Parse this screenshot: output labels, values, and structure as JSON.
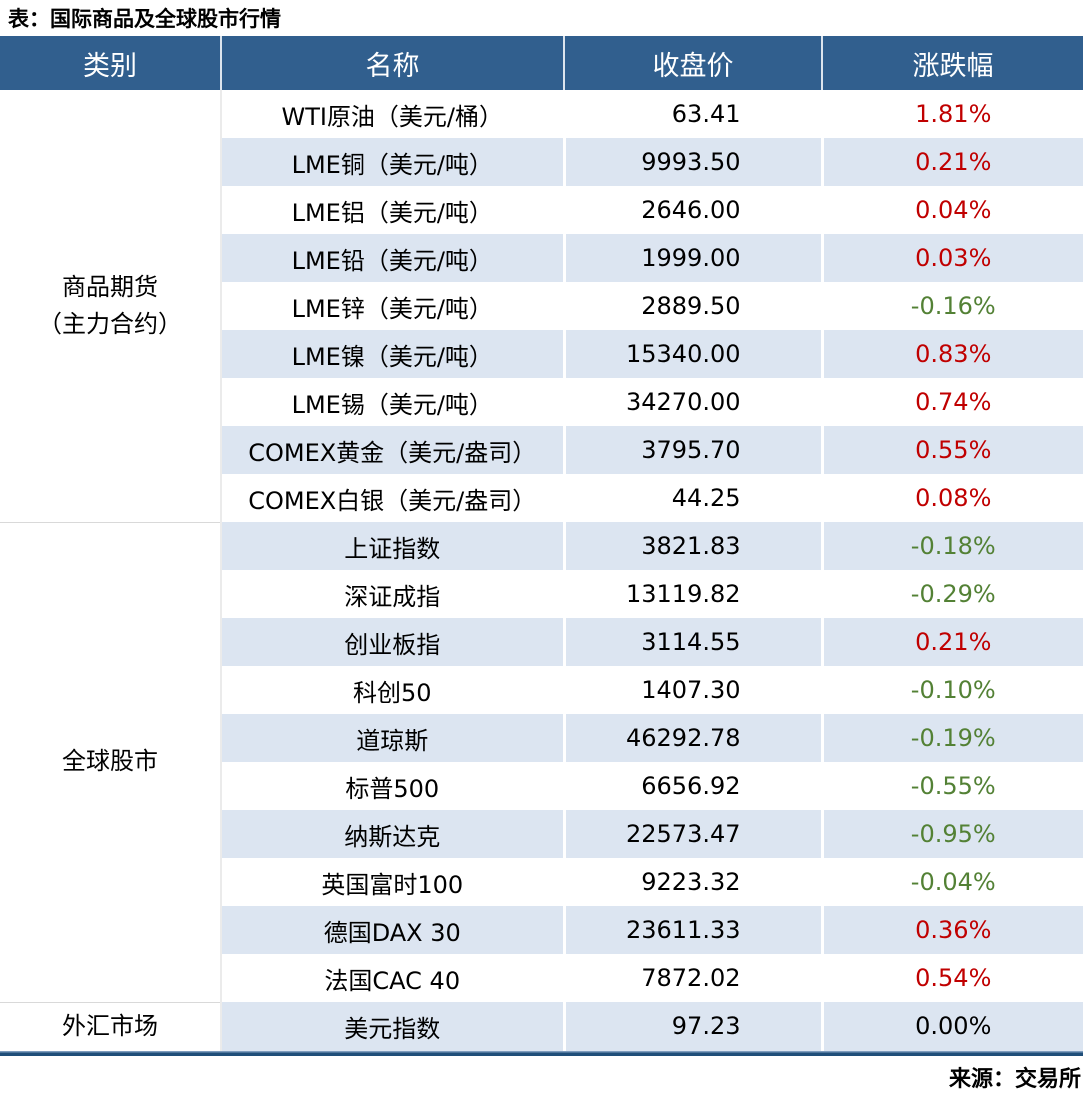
{
  "page": {
    "title": "表：国际商品及全球股市行情",
    "source": "来源：交易所"
  },
  "colors": {
    "header_bg": "#315F8E",
    "row_stripe": "#DCE5F1",
    "up_red": "#C00000",
    "down_green": "#538135",
    "flat_black": "#000000",
    "bottom_rule_blue": "#1F4E79"
  },
  "table": {
    "columns": [
      "类别",
      "名称",
      "收盘价",
      "涨跌幅"
    ],
    "sections": [
      {
        "category_lines": [
          "商品期货",
          "（主力合约）"
        ],
        "rows": [
          {
            "name": "WTI原油（美元/桶）",
            "close": "63.41",
            "change": "1.81%",
            "direction": "up"
          },
          {
            "name": "LME铜（美元/吨）",
            "close": "9993.50",
            "change": "0.21%",
            "direction": "up"
          },
          {
            "name": "LME铝（美元/吨）",
            "close": "2646.00",
            "change": "0.04%",
            "direction": "up"
          },
          {
            "name": "LME铅（美元/吨）",
            "close": "1999.00",
            "change": "0.03%",
            "direction": "up"
          },
          {
            "name": "LME锌（美元/吨）",
            "close": "2889.50",
            "change": "-0.16%",
            "direction": "down"
          },
          {
            "name": "LME镍（美元/吨）",
            "close": "15340.00",
            "change": "0.83%",
            "direction": "up"
          },
          {
            "name": "LME锡（美元/吨）",
            "close": "34270.00",
            "change": "0.74%",
            "direction": "up"
          },
          {
            "name": "COMEX黄金（美元/盎司）",
            "close": "3795.70",
            "change": "0.55%",
            "direction": "up"
          },
          {
            "name": "COMEX白银（美元/盎司）",
            "close": "44.25",
            "change": "0.08%",
            "direction": "up"
          }
        ]
      },
      {
        "category_lines": [
          "全球股市"
        ],
        "rows": [
          {
            "name": "上证指数",
            "close": "3821.83",
            "change": "-0.18%",
            "direction": "down"
          },
          {
            "name": "深证成指",
            "close": "13119.82",
            "change": "-0.29%",
            "direction": "down"
          },
          {
            "name": "创业板指",
            "close": "3114.55",
            "change": "0.21%",
            "direction": "up"
          },
          {
            "name": "科创50",
            "close": "1407.30",
            "change": "-0.10%",
            "direction": "down"
          },
          {
            "name": "道琼斯",
            "close": "46292.78",
            "change": "-0.19%",
            "direction": "down"
          },
          {
            "name": "标普500",
            "close": "6656.92",
            "change": "-0.55%",
            "direction": "down"
          },
          {
            "name": "纳斯达克",
            "close": "22573.47",
            "change": "-0.95%",
            "direction": "down"
          },
          {
            "name": "英国富时100",
            "close": "9223.32",
            "change": "-0.04%",
            "direction": "down"
          },
          {
            "name": "德国DAX 30",
            "close": "23611.33",
            "change": "0.36%",
            "direction": "up"
          },
          {
            "name": "法国CAC 40",
            "close": "7872.02",
            "change": "0.54%",
            "direction": "up"
          }
        ]
      },
      {
        "category_lines": [
          "外汇市场"
        ],
        "rows": [
          {
            "name": "美元指数",
            "close": "97.23",
            "change": "0.00%",
            "direction": "flat"
          }
        ]
      }
    ]
  }
}
